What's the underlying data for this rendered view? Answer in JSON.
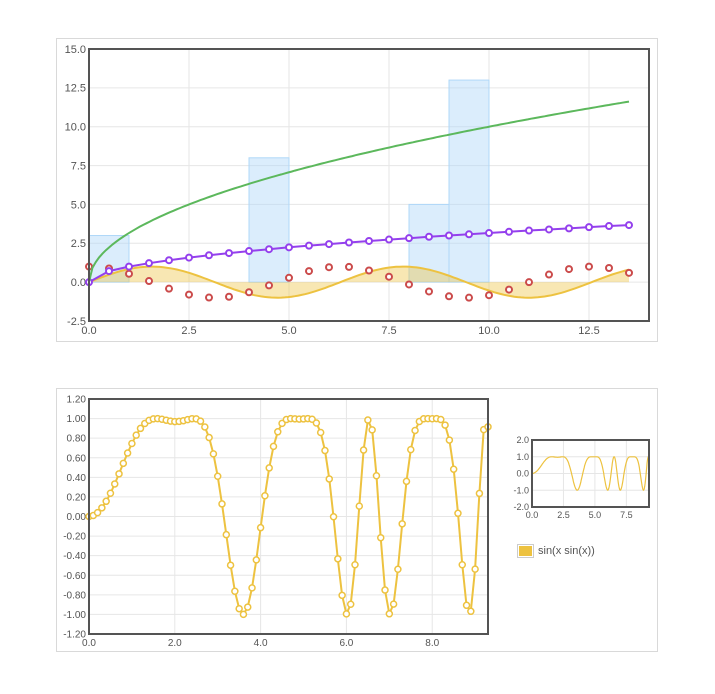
{
  "colors": {
    "line_green": "#5cb85c",
    "line_purple": "#9440ed",
    "area_gold": "#edc240",
    "points_red": "#cb4b4b",
    "bars_blue": "#afd8f8",
    "grid": "#e6e6e6",
    "frame": "#545454"
  },
  "chart_data": [
    {
      "type": "line",
      "title": "",
      "xlabel": "",
      "ylabel": "",
      "xlim": [
        0,
        14
      ],
      "ylim": [
        -2.5,
        15
      ],
      "x_ticks": [
        "0.0",
        "2.5",
        "5.0",
        "7.5",
        "10.0",
        "12.5"
      ],
      "y_ticks": [
        "-2.5",
        "0.0",
        "2.5",
        "5.0",
        "7.5",
        "10.0",
        "12.5",
        "15.0"
      ],
      "grid": true,
      "series": [
        {
          "kind": "bar",
          "color": "#afd8f8",
          "bar_width": 1,
          "points": [
            [
              0,
              3
            ],
            [
              4,
              8
            ],
            [
              8,
              5
            ],
            [
              9,
              13
            ]
          ]
        },
        {
          "kind": "area",
          "color": "#edc240",
          "function": "sin(x)",
          "x_range": [
            0,
            13.5
          ]
        },
        {
          "kind": "points",
          "color": "#cb4b4b",
          "points": [
            [
              0,
              1.0
            ],
            [
              0.5,
              0.88
            ],
            [
              1.0,
              0.54
            ],
            [
              1.5,
              0.07
            ],
            [
              2.0,
              -0.42
            ],
            [
              2.5,
              -0.8
            ],
            [
              3.0,
              -0.99
            ],
            [
              3.5,
              -0.94
            ],
            [
              4.0,
              -0.65
            ],
            [
              4.5,
              -0.21
            ],
            [
              5.0,
              0.28
            ],
            [
              5.5,
              0.71
            ],
            [
              6.0,
              0.96
            ],
            [
              6.5,
              0.98
            ],
            [
              7.0,
              0.75
            ],
            [
              7.5,
              0.35
            ],
            [
              8.0,
              -0.15
            ],
            [
              8.5,
              -0.6
            ],
            [
              9.0,
              -0.91
            ],
            [
              9.5,
              -1.0
            ],
            [
              10.0,
              -0.84
            ],
            [
              10.5,
              -0.48
            ],
            [
              11.0,
              0.0
            ],
            [
              11.5,
              0.49
            ],
            [
              12.0,
              0.84
            ],
            [
              12.5,
              1.0
            ],
            [
              13.0,
              0.91
            ],
            [
              13.5,
              0.6
            ]
          ]
        },
        {
          "kind": "line_points",
          "color": "#9440ed",
          "points": [
            [
              0,
              0.0
            ],
            [
              0.5,
              0.71
            ],
            [
              1.0,
              1.0
            ],
            [
              1.5,
              1.22
            ],
            [
              2.0,
              1.41
            ],
            [
              2.5,
              1.58
            ],
            [
              3.0,
              1.73
            ],
            [
              3.5,
              1.87
            ],
            [
              4.0,
              2.0
            ],
            [
              4.5,
              2.12
            ],
            [
              5.0,
              2.24
            ],
            [
              5.5,
              2.35
            ],
            [
              6.0,
              2.45
            ],
            [
              6.5,
              2.55
            ],
            [
              7.0,
              2.65
            ],
            [
              7.5,
              2.74
            ],
            [
              8.0,
              2.83
            ],
            [
              8.5,
              2.92
            ],
            [
              9.0,
              3.0
            ],
            [
              9.5,
              3.08
            ],
            [
              10.0,
              3.16
            ],
            [
              10.5,
              3.24
            ],
            [
              11.0,
              3.32
            ],
            [
              11.5,
              3.39
            ],
            [
              12.0,
              3.46
            ],
            [
              12.5,
              3.54
            ],
            [
              13.0,
              3.61
            ],
            [
              13.5,
              3.67
            ]
          ]
        },
        {
          "kind": "line",
          "color": "#5cb85c",
          "function": "sqrt(10x)",
          "x_range": [
            0,
            13.5
          ]
        }
      ]
    },
    {
      "type": "line",
      "title": "",
      "xlabel": "",
      "ylabel": "",
      "xlim": [
        0,
        9.3
      ],
      "ylim": [
        -1.2,
        1.2
      ],
      "x_ticks": [
        "0.0",
        "2.0",
        "4.0",
        "6.0",
        "8.0"
      ],
      "y_ticks": [
        "-1.20",
        "-1.00",
        "-0.80",
        "-0.60",
        "-0.40",
        "-0.20",
        "0.00",
        "0.20",
        "0.40",
        "0.60",
        "0.80",
        "1.00",
        "1.20"
      ],
      "grid": true,
      "series": [
        {
          "name": "sin(x sin(x))",
          "color": "#edc240",
          "function": "sin(x*sin(x))",
          "x_start": 0,
          "x_step": 0.1,
          "x_end": 9.3,
          "markers": true
        }
      ]
    },
    {
      "type": "line",
      "title": "",
      "xlim": [
        0,
        9.3
      ],
      "ylim": [
        -2.0,
        2.0
      ],
      "x_ticks": [
        "0.0",
        "2.5",
        "5.0",
        "7.5"
      ],
      "y_ticks": [
        "-2.0",
        "-1.0",
        "0.0",
        "1.0",
        "2.0"
      ],
      "grid": true,
      "series": [
        {
          "color": "#edc240",
          "function": "sin(x*sin(x))",
          "x_range": [
            0,
            9.3
          ]
        }
      ]
    }
  ],
  "legend": {
    "label": "sin(x sin(x))",
    "color": "#edc240"
  }
}
